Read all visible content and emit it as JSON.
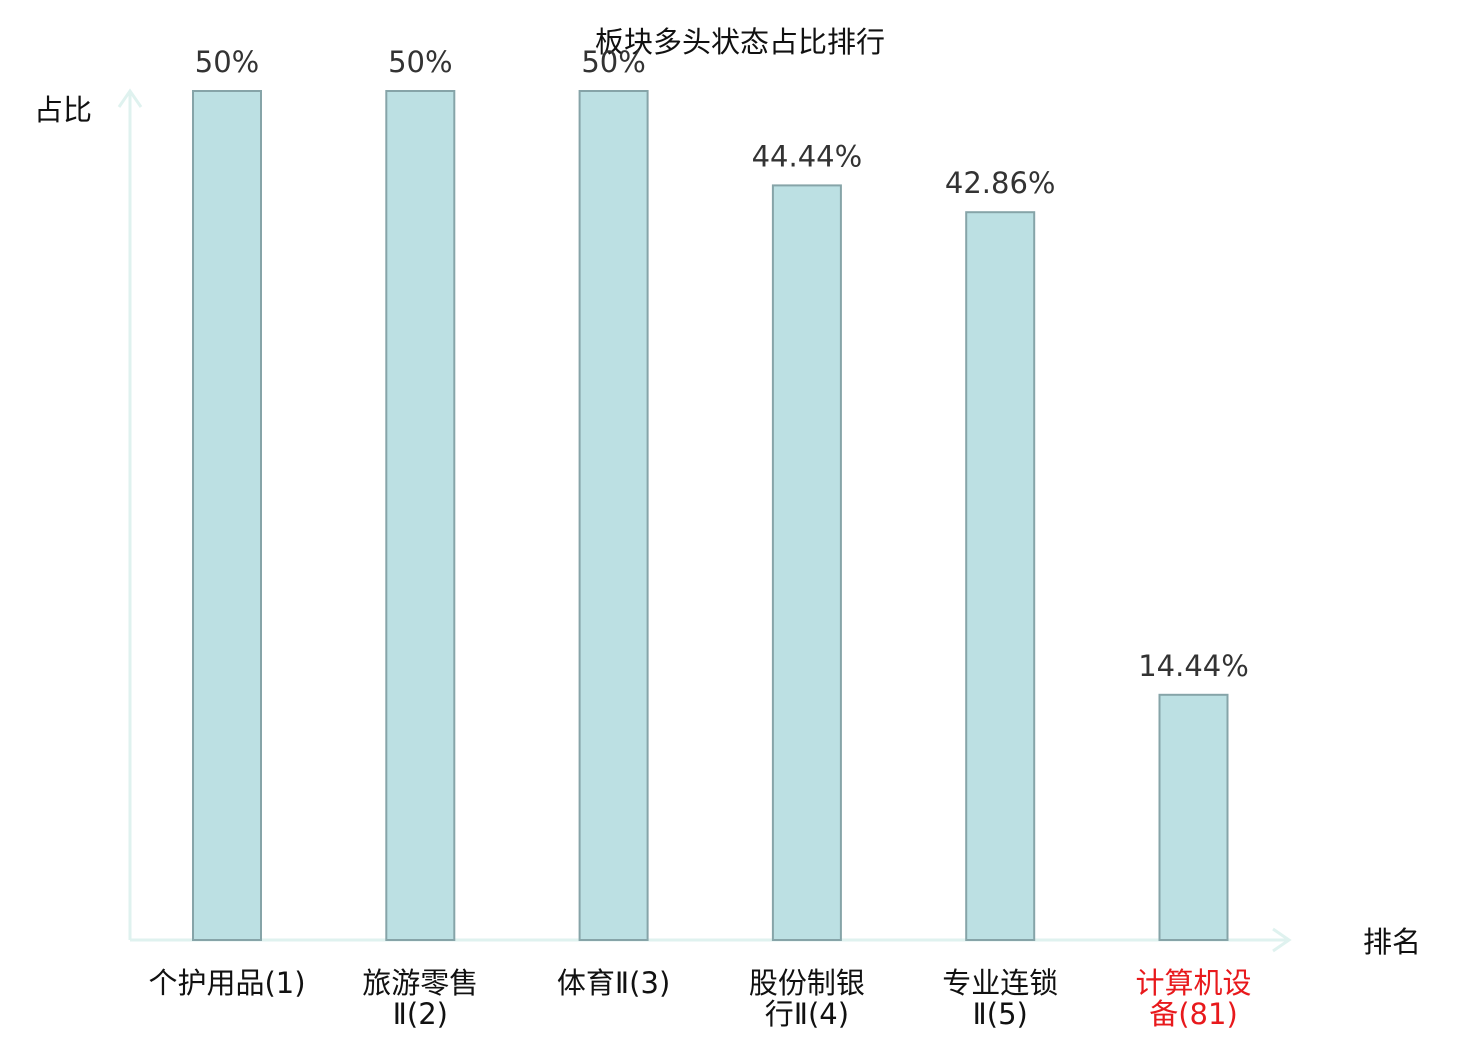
{
  "chart_data": {
    "type": "bar",
    "title": "板块多头状态占比排行",
    "xlabel": "排名",
    "ylabel": "占比",
    "ylim": [
      0,
      50
    ],
    "grid": false,
    "categories": [
      "个护用品(1)",
      "旅游零售Ⅱ(2)",
      "体育Ⅱ(3)",
      "股份制银行Ⅱ(4)",
      "专业连锁Ⅱ(5)",
      "计算机设备(81)"
    ],
    "category_lines": [
      [
        "个护用品(1)"
      ],
      [
        "旅游零售",
        "Ⅱ(2)"
      ],
      [
        "体育Ⅱ(3)"
      ],
      [
        "股份制银",
        "行Ⅱ(4)"
      ],
      [
        "专业连锁",
        "Ⅱ(5)"
      ],
      [
        "计算机设",
        "备(81)"
      ]
    ],
    "values": [
      50,
      50,
      50,
      44.44,
      42.86,
      14.44
    ],
    "value_labels": [
      "50%",
      "50%",
      "50%",
      "44.44%",
      "42.86%",
      "14.44%"
    ],
    "highlight_index": 5,
    "colors": {
      "bar_fill": "#bce0e3",
      "bar_stroke": "#86a4a8",
      "axis": "#dff2ef",
      "text": "#333333",
      "label_text": "#111111",
      "highlight_text": "#e8191c"
    }
  }
}
